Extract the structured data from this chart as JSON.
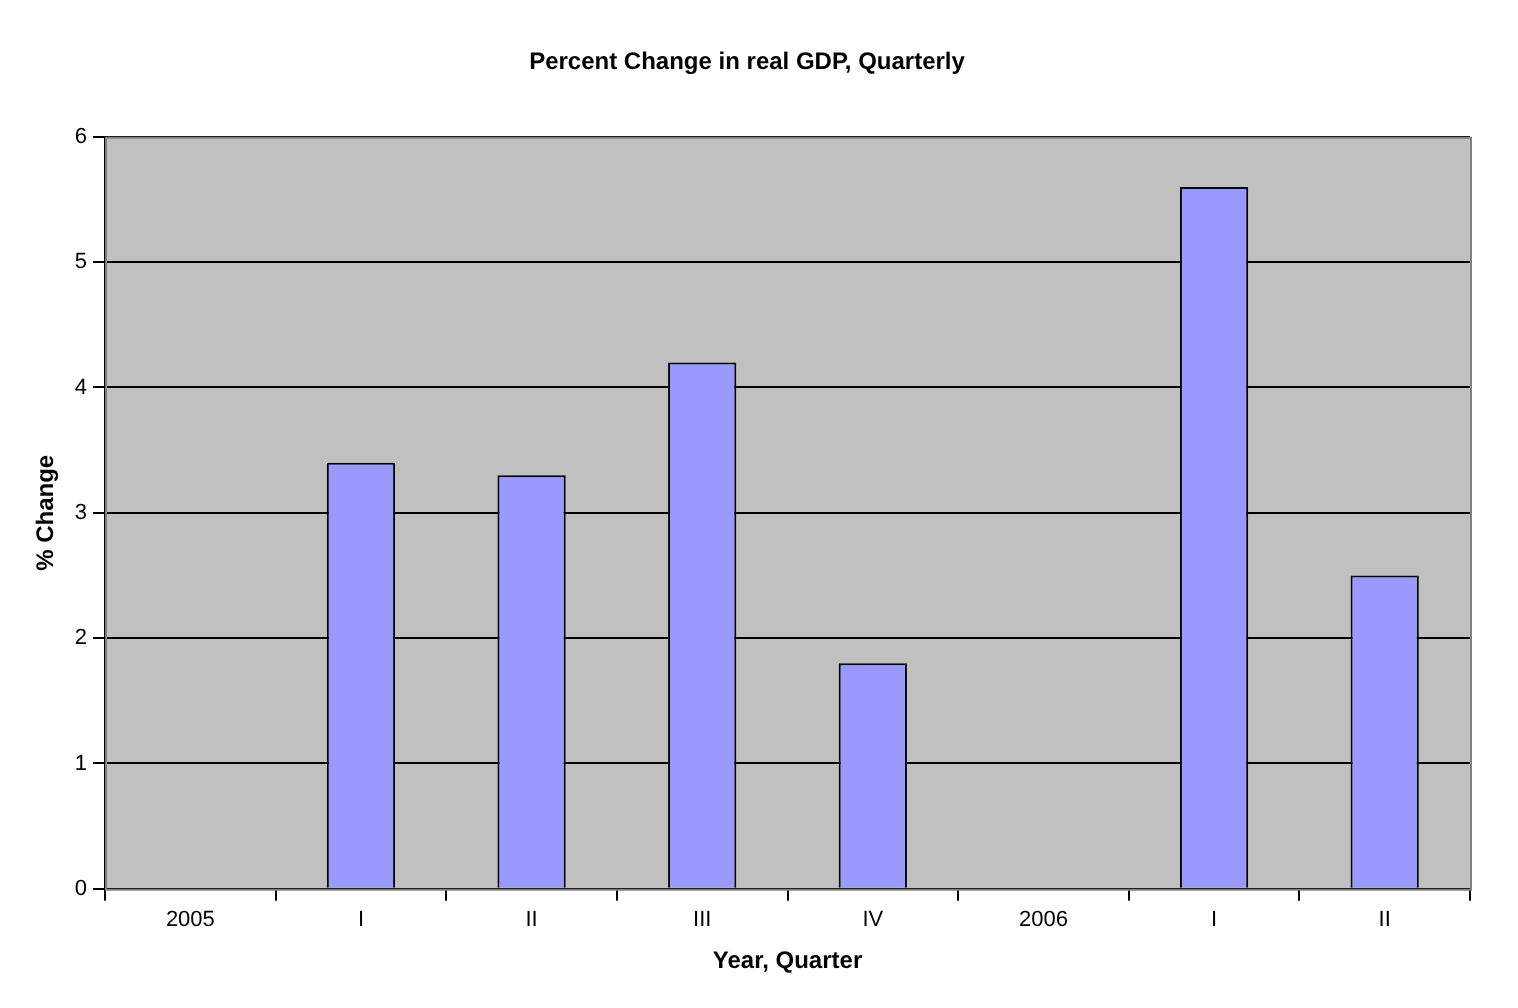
{
  "chart_data": {
    "type": "bar",
    "title": "Percent Change in real GDP, Quarterly",
    "xlabel": "Year, Quarter",
    "ylabel": "% Change",
    "categories": [
      "2005",
      "I",
      "II",
      "III",
      "IV",
      "2006",
      "I",
      "II"
    ],
    "series": [
      {
        "color": "#9999ff",
        "values": [
          null,
          3.4,
          3.3,
          4.2,
          1.8,
          null,
          5.6,
          2.5
        ]
      }
    ],
    "ylim": [
      0,
      6
    ],
    "yticks": [
      0,
      1,
      2,
      3,
      4,
      5,
      6
    ],
    "grid": "y",
    "legend": false
  }
}
